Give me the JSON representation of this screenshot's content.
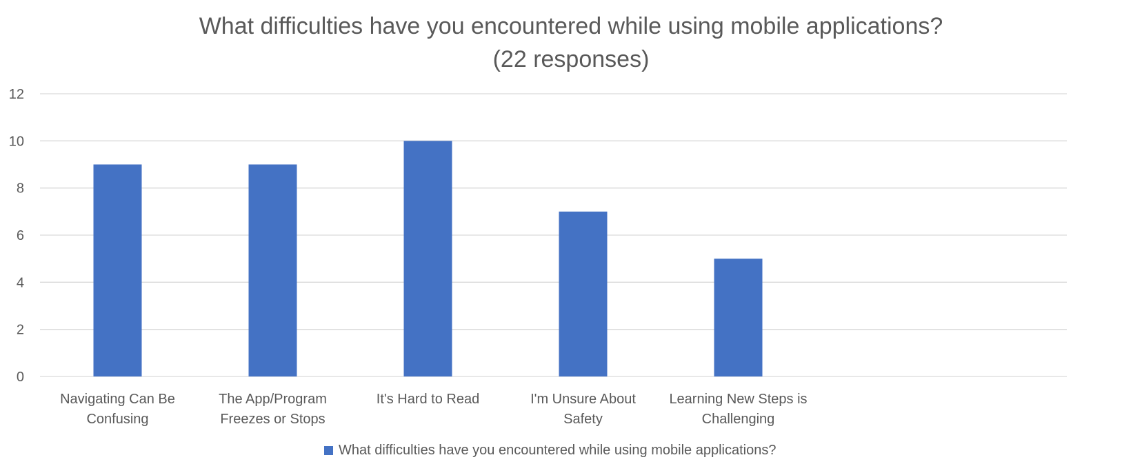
{
  "chart_data": {
    "type": "bar",
    "title": "What difficulties have you encountered while using mobile applications?",
    "subtitle": "(22 responses)",
    "categories": [
      [
        "Navigating Can Be",
        "Confusing"
      ],
      [
        "The App/Program",
        "Freezes or Stops"
      ],
      [
        "It's Hard to Read"
      ],
      [
        "I'm Unsure About",
        "Safety"
      ],
      [
        "Learning New Steps is",
        "Challenging"
      ]
    ],
    "series": [
      {
        "name": "What difficulties have you encountered while using mobile applications?",
        "values": [
          9,
          9,
          10,
          7,
          5
        ]
      }
    ],
    "ylim": [
      0,
      12
    ],
    "yticks": [
      0,
      2,
      4,
      6,
      8,
      10,
      12
    ],
    "grid": true,
    "legend_position": "bottom",
    "bar_color": "#4472C4",
    "grid_color": "#d9d9d9"
  }
}
